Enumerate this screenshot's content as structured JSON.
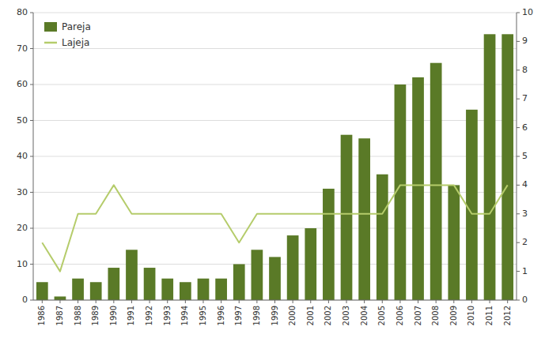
{
  "chart_data": {
    "type": "bar",
    "categories": [
      "1986",
      "1987",
      "1988",
      "1989",
      "1990",
      "1991",
      "1992",
      "1993",
      "1994",
      "1995",
      "1996",
      "1997",
      "1998",
      "1999",
      "2000",
      "2001",
      "2002",
      "2003",
      "2004",
      "2005",
      "2006",
      "2007",
      "2008",
      "2009",
      "2010",
      "2011",
      "2012"
    ],
    "series": [
      {
        "name": "Pareja",
        "type": "bar",
        "color": "#5a7a27",
        "values": [
          5,
          1,
          6,
          5,
          9,
          14,
          9,
          6,
          5,
          6,
          6,
          10,
          14,
          12,
          18,
          20,
          31,
          46,
          45,
          35,
          60,
          62,
          66,
          32,
          53,
          74,
          74
        ]
      },
      {
        "name": "Lajeja",
        "type": "line",
        "color": "#b5cc6b",
        "axis": "y2",
        "values": [
          2.0,
          1.0,
          3.0,
          3.0,
          4.0,
          3.0,
          3.0,
          3.0,
          3.0,
          3.0,
          3.0,
          2.0,
          3.0,
          3.0,
          3.0,
          3.0,
          3.0,
          3.0,
          3.0,
          3.0,
          4.0,
          4.0,
          4.0,
          4.0,
          3.0,
          3.0,
          4.0
        ]
      }
    ],
    "ylim": [
      0,
      80
    ],
    "yticks": [
      0,
      10,
      20,
      30,
      40,
      50,
      60,
      70,
      80
    ],
    "y2lim": [
      0,
      10
    ],
    "y2ticks": [
      0,
      1,
      2,
      3,
      4,
      5,
      6,
      7,
      8,
      9,
      10
    ],
    "grid": true,
    "legend": "upper left"
  }
}
